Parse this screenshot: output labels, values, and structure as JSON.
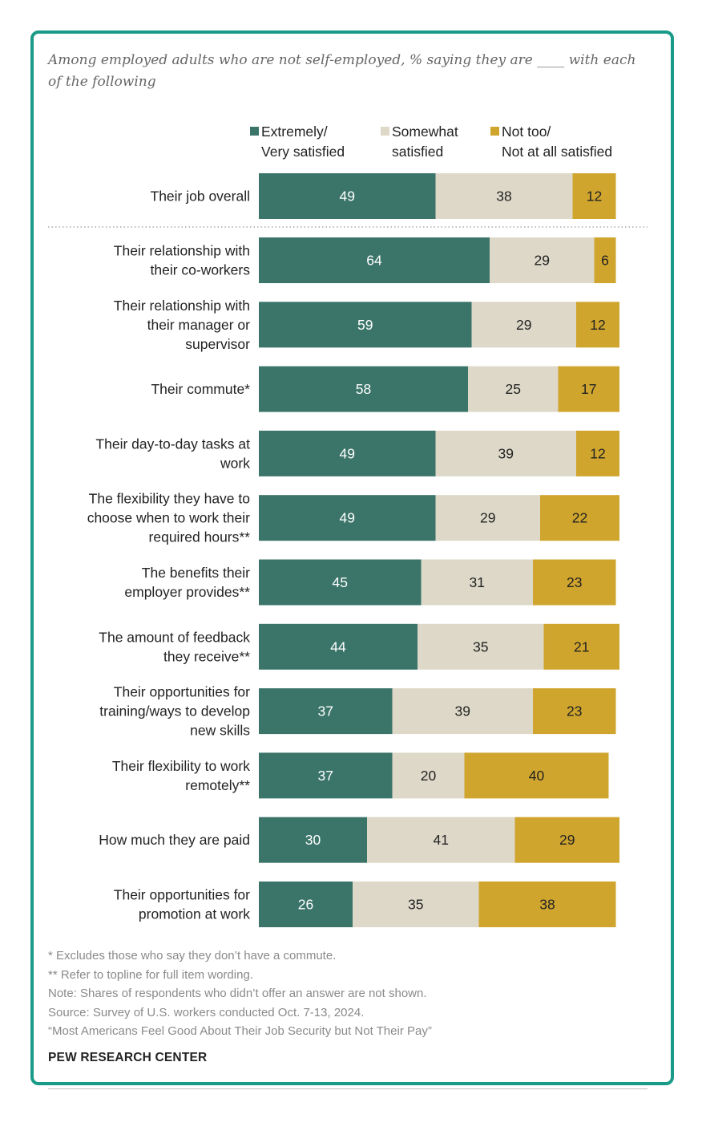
{
  "chart_data": {
    "type": "bar",
    "orientation": "horizontal",
    "stacked": true,
    "title": "Among employed adults who are not self-employed, % saying they are ____ with each of the following",
    "categories": [
      [
        "Their job overall"
      ],
      [
        "Their relationship with",
        "their co-workers"
      ],
      [
        "Their relationship with",
        "their manager or",
        "supervisor"
      ],
      [
        "Their commute*"
      ],
      [
        "Their day-to-day tasks at",
        "work"
      ],
      [
        "The flexibility they have to",
        "choose when to work their",
        "required hours**"
      ],
      [
        "The benefits their",
        "employer provides**"
      ],
      [
        "The amount of feedback",
        "they receive**"
      ],
      [
        "Their opportunities for",
        "training/ways to develop",
        "new skills"
      ],
      [
        "Their flexibility to work",
        "remotely**"
      ],
      [
        "How much they are paid"
      ],
      [
        "Their opportunities for",
        "promotion at work"
      ]
    ],
    "series": [
      {
        "name": "Extremely/ Very satisfied",
        "legend_lines": [
          "Extremely/",
          "Very satisfied"
        ],
        "color": "#3b7569",
        "values": [
          49,
          64,
          59,
          58,
          49,
          49,
          45,
          44,
          37,
          37,
          30,
          26
        ]
      },
      {
        "name": "Somewhat satisfied",
        "legend_lines": [
          "Somewhat",
          "satisfied"
        ],
        "color": "#ddd8c8",
        "values": [
          38,
          29,
          29,
          25,
          39,
          29,
          31,
          35,
          39,
          20,
          41,
          35
        ]
      },
      {
        "name": "Not too/ Not at all satisfied",
        "legend_lines": [
          "Not too/",
          "Not at all satisfied"
        ],
        "color": "#d0a52e",
        "values": [
          12,
          6,
          12,
          17,
          12,
          22,
          23,
          21,
          23,
          40,
          29,
          38
        ]
      }
    ],
    "xlim": [
      0,
      100
    ]
  },
  "footnotes": [
    "* Excludes those who say they don’t have a commute.",
    "** Refer to topline for full item wording.",
    "Note: Shares of respondents who didn’t offer an answer are not shown.",
    "Source: Survey of U.S. workers conducted Oct. 7-13, 2024.",
    "“Most Americans Feel Good About Their Job Security but Not Their Pay”"
  ],
  "source_org": "PEW RESEARCH CENTER",
  "colors": {
    "frame": "#1a9a88",
    "text": "#222222",
    "muted": "#8a8a8a"
  }
}
